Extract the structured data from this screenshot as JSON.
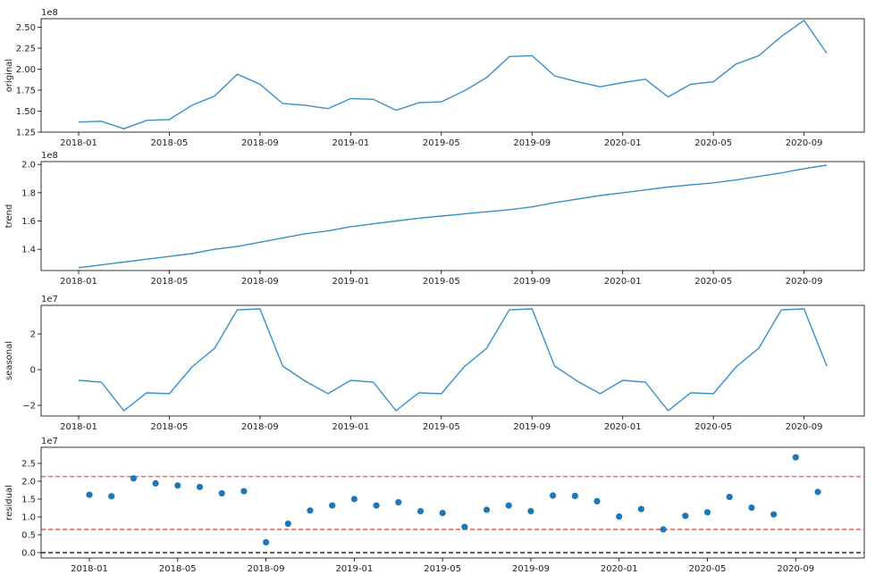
{
  "chart_data": [
    {
      "type": "line",
      "ylabel": "original",
      "offset_text": "1e8",
      "ylim": [
        1.25,
        2.6
      ],
      "yticks": [
        1.25,
        1.5,
        1.75,
        2.0,
        2.25,
        2.5
      ],
      "ytick_labels": [
        "1.25",
        "1.50",
        "1.75",
        "2.00",
        "2.25",
        "2.50"
      ],
      "xtick_labels": [
        "2018-01",
        "2018-05",
        "2018-09",
        "2019-01",
        "2019-05",
        "2019-09",
        "2020-01",
        "2020-05",
        "2020-09"
      ],
      "color": "#3a8fc4",
      "x": [
        "2018-01",
        "2018-02",
        "2018-03",
        "2018-04",
        "2018-05",
        "2018-06",
        "2018-07",
        "2018-08",
        "2018-09",
        "2018-10",
        "2018-11",
        "2018-12",
        "2019-01",
        "2019-02",
        "2019-03",
        "2019-04",
        "2019-05",
        "2019-06",
        "2019-07",
        "2019-08",
        "2019-09",
        "2019-10",
        "2019-11",
        "2019-12",
        "2020-01",
        "2020-02",
        "2020-03",
        "2020-04",
        "2020-05",
        "2020-06",
        "2020-07",
        "2020-08",
        "2020-09",
        "2020-10"
      ],
      "values": [
        1.37,
        1.38,
        1.29,
        1.39,
        1.4,
        1.57,
        1.68,
        1.94,
        1.82,
        1.59,
        1.57,
        1.53,
        1.65,
        1.64,
        1.51,
        1.6,
        1.61,
        1.74,
        1.9,
        2.15,
        2.16,
        1.92,
        1.85,
        1.79,
        1.84,
        1.88,
        1.67,
        1.82,
        1.85,
        2.06,
        2.16,
        2.39,
        2.58,
        2.19
      ]
    },
    {
      "type": "line",
      "ylabel": "trend",
      "offset_text": "1e8",
      "ylim": [
        1.25,
        2.02
      ],
      "yticks": [
        1.4,
        1.6,
        1.8,
        2.0
      ],
      "ytick_labels": [
        "1.4",
        "1.6",
        "1.8",
        "2.0"
      ],
      "xtick_labels": [
        "2018-01",
        "2018-05",
        "2018-09",
        "2019-01",
        "2019-05",
        "2019-09",
        "2020-01",
        "2020-05",
        "2020-09"
      ],
      "color": "#3a8fc4",
      "x": [
        "2018-01",
        "2018-02",
        "2018-03",
        "2018-04",
        "2018-05",
        "2018-06",
        "2018-07",
        "2018-08",
        "2018-09",
        "2018-10",
        "2018-11",
        "2018-12",
        "2019-01",
        "2019-02",
        "2019-03",
        "2019-04",
        "2019-05",
        "2019-06",
        "2019-07",
        "2019-08",
        "2019-09",
        "2019-10",
        "2019-11",
        "2019-12",
        "2020-01",
        "2020-02",
        "2020-03",
        "2020-04",
        "2020-05",
        "2020-06",
        "2020-07",
        "2020-08",
        "2020-09",
        "2020-10"
      ],
      "values": [
        1.27,
        1.29,
        1.31,
        1.33,
        1.35,
        1.37,
        1.4,
        1.42,
        1.45,
        1.48,
        1.51,
        1.53,
        1.56,
        1.58,
        1.6,
        1.62,
        1.635,
        1.65,
        1.665,
        1.68,
        1.7,
        1.73,
        1.755,
        1.78,
        1.8,
        1.82,
        1.84,
        1.855,
        1.87,
        1.89,
        1.915,
        1.94,
        1.97,
        1.995
      ]
    },
    {
      "type": "line",
      "ylabel": "seasonal",
      "offset_text": "1e7",
      "ylim": [
        -2.6,
        3.6
      ],
      "yticks": [
        -2,
        0,
        2
      ],
      "ytick_labels": [
        "−2",
        "0",
        "2"
      ],
      "xtick_labels": [
        "2018-01",
        "2018-05",
        "2018-09",
        "2019-01",
        "2019-05",
        "2019-09",
        "2020-01",
        "2020-05",
        "2020-09"
      ],
      "color": "#3a8fc4",
      "x": [
        "2018-01",
        "2018-02",
        "2018-03",
        "2018-04",
        "2018-05",
        "2018-06",
        "2018-07",
        "2018-08",
        "2018-09",
        "2018-10",
        "2018-11",
        "2018-12",
        "2019-01",
        "2019-02",
        "2019-03",
        "2019-04",
        "2019-05",
        "2019-06",
        "2019-07",
        "2019-08",
        "2019-09",
        "2019-10",
        "2019-11",
        "2019-12",
        "2020-01",
        "2020-02",
        "2020-03",
        "2020-04",
        "2020-05",
        "2020-06",
        "2020-07",
        "2020-08",
        "2020-09",
        "2020-10"
      ],
      "values": [
        -0.6,
        -0.7,
        -2.3,
        -1.3,
        -1.35,
        0.15,
        1.2,
        3.35,
        3.4,
        0.2,
        -0.65,
        -1.35,
        -0.6,
        -0.7,
        -2.3,
        -1.3,
        -1.35,
        0.15,
        1.2,
        3.35,
        3.4,
        0.2,
        -0.65,
        -1.35,
        -0.6,
        -0.7,
        -2.3,
        -1.3,
        -1.35,
        0.15,
        1.2,
        3.35,
        3.4,
        0.2
      ]
    },
    {
      "type": "scatter",
      "ylabel": "residual",
      "offset_text": "1e7",
      "ylim": [
        -0.15,
        2.95
      ],
      "yticks": [
        0.0,
        0.5,
        1.0,
        1.5,
        2.0,
        2.5
      ],
      "ytick_labels": [
        "0.0",
        "0.5",
        "1.0",
        "1.5",
        "2.0",
        "2.5"
      ],
      "xtick_labels": [
        "2018-01",
        "2018-05",
        "2018-09",
        "2019-01",
        "2019-05",
        "2019-09",
        "2020-01",
        "2020-05",
        "2020-09"
      ],
      "color": "#1f77b4",
      "hlines": [
        {
          "y": 2.13,
          "color": "#e8393a",
          "style": "dashed"
        },
        {
          "y": 0.65,
          "color": "#e8393a",
          "style": "dashed"
        },
        {
          "y": 0.0,
          "color": "#000000",
          "style": "dashed"
        }
      ],
      "x": [
        "2018-01",
        "2018-02",
        "2018-03",
        "2018-04",
        "2018-05",
        "2018-06",
        "2018-07",
        "2018-08",
        "2018-09",
        "2018-10",
        "2018-11",
        "2018-12",
        "2019-01",
        "2019-02",
        "2019-03",
        "2019-04",
        "2019-05",
        "2019-06",
        "2019-07",
        "2019-08",
        "2019-09",
        "2019-10",
        "2019-11",
        "2019-12",
        "2020-01",
        "2020-02",
        "2020-03",
        "2020-04",
        "2020-05",
        "2020-06",
        "2020-07",
        "2020-08",
        "2020-09",
        "2020-10"
      ],
      "values": [
        1.62,
        1.58,
        2.08,
        1.94,
        1.88,
        1.84,
        1.66,
        1.72,
        0.29,
        0.81,
        1.18,
        1.32,
        1.5,
        1.32,
        1.41,
        1.16,
        1.11,
        0.72,
        1.2,
        1.32,
        1.16,
        1.6,
        1.59,
        1.44,
        1.01,
        1.22,
        0.65,
        1.03,
        1.13,
        1.56,
        1.26,
        1.07,
        2.67,
        1.7
      ]
    }
  ]
}
